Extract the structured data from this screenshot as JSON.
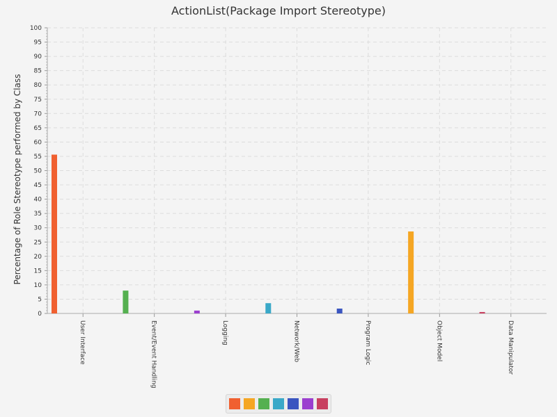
{
  "chart_data": {
    "type": "bar",
    "title": "ActionList(Package Import Stereotype)",
    "xlabel": "",
    "ylabel": "Percentage of Role Stereotype performed by Class",
    "ylim": [
      0,
      100
    ],
    "ytick_step": 5,
    "grid": true,
    "legend_position": "bottom-center",
    "categories": [
      "User Interface",
      "Event/Event Handling",
      "Logging",
      "Network/Web",
      "Program Logic",
      "Object Model",
      "Data Manipulator"
    ],
    "values": [
      55.6,
      8.0,
      1.0,
      3.6,
      1.7,
      28.7,
      0.5
    ],
    "colors": [
      "#f06030",
      "#f5a623",
      "#55b050",
      "#3aa8c8",
      "#3a55c0",
      "#9b3fcf",
      "#c84060"
    ],
    "bar_colors": [
      "#f06030",
      "#55b050",
      "#9b3fcf",
      "#3aa8c8",
      "#3a55c0",
      "#f5a623",
      "#c84060"
    ]
  }
}
